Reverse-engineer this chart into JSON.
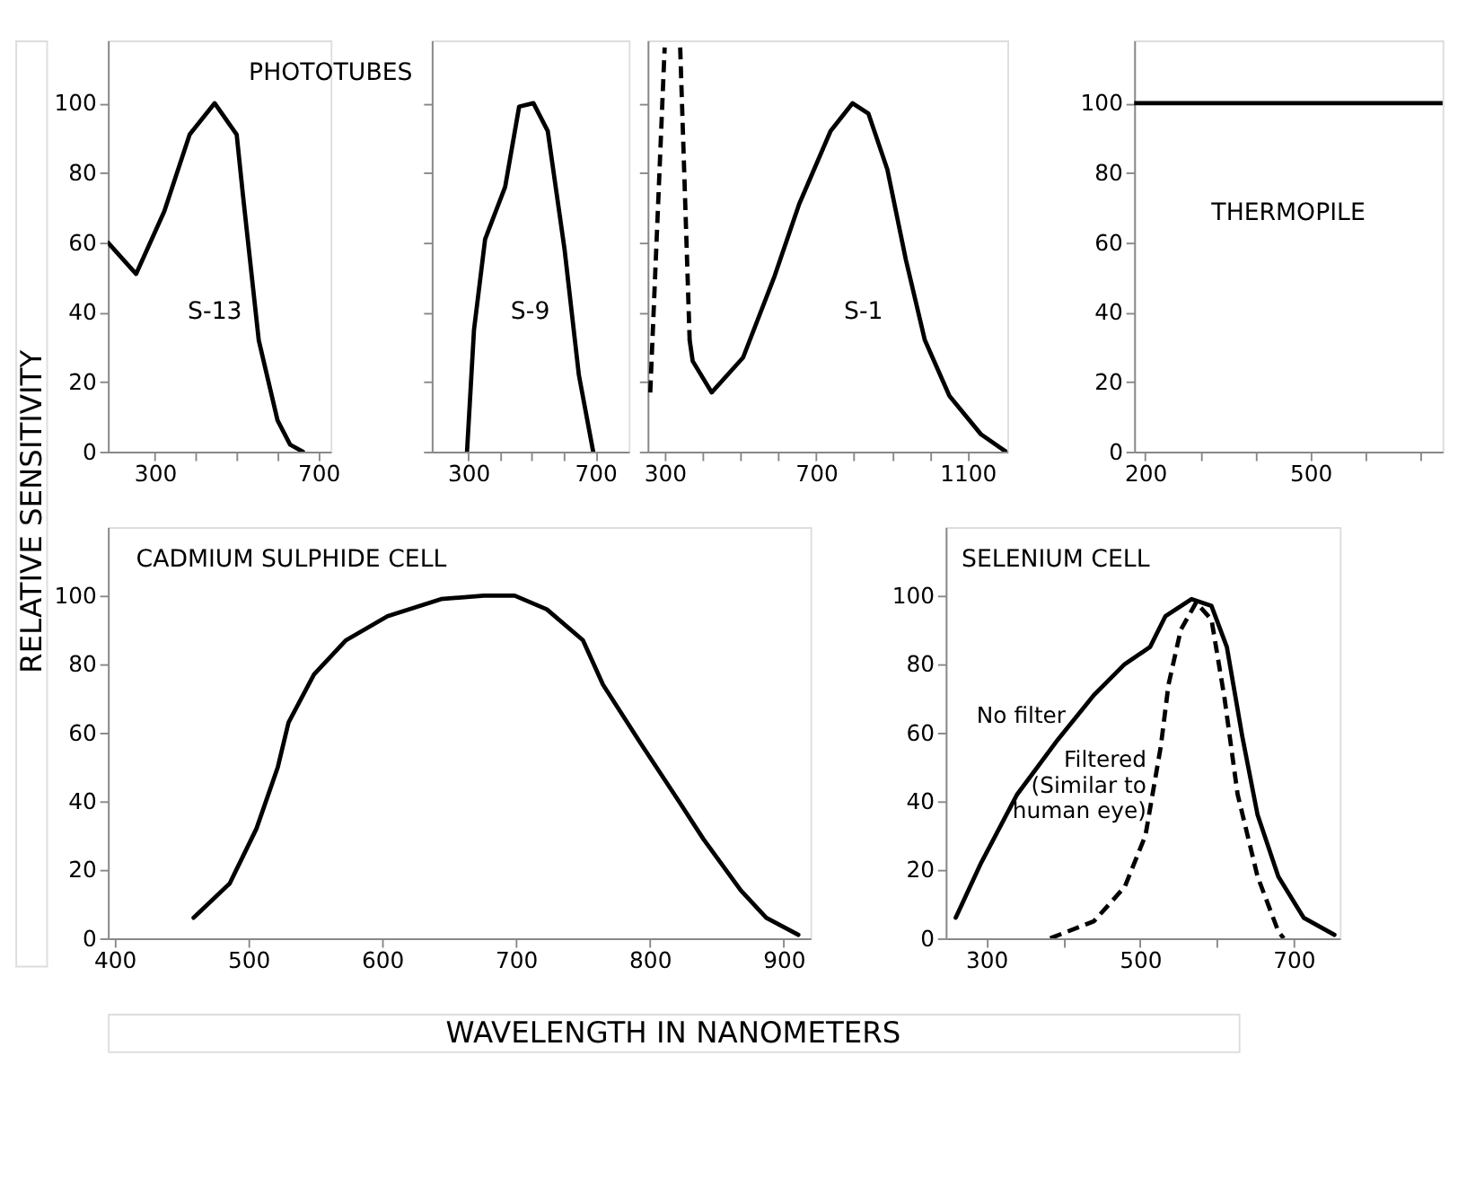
{
  "chart_data": [
    {
      "type": "line",
      "ylabel": "RELATIVE SENSITIVITY",
      "annotations": [
        "PHOTOTUBES",
        "S-13"
      ],
      "xlim": [
        185,
        730
      ],
      "xticks": [
        300,
        {
          "value": 400,
          "label": null
        },
        {
          "value": 500,
          "label": null
        },
        {
          "value": 600,
          "label": null
        },
        700
      ],
      "ylim": [
        0,
        118
      ],
      "yticks": [
        0,
        20,
        40,
        60,
        80,
        100
      ],
      "series": [
        {
          "color": "#000000",
          "line_style": "solid",
          "x": [
            185,
            254,
            323,
            385,
            446,
            500,
            515,
            554,
            600,
            631,
            662
          ],
          "values": [
            60,
            51,
            69,
            91,
            100,
            91,
            74,
            32,
            9,
            2,
            0
          ]
        }
      ]
    },
    {
      "type": "line",
      "tick_labels": "x",
      "annotations": [
        "S-9"
      ],
      "xlim": [
        185,
        805
      ],
      "xticks": [
        300,
        {
          "value": 400,
          "label": null
        },
        {
          "value": 500,
          "label": null
        },
        {
          "value": 600,
          "label": null
        },
        700
      ],
      "ylim": [
        0,
        118
      ],
      "yticks": [
        0,
        20,
        40,
        60,
        80,
        100
      ],
      "series": [
        {
          "color": "#000000",
          "line_style": "solid",
          "x": [
            296,
            318,
            353,
            416,
            460,
            505,
            550,
            603,
            648,
            693
          ],
          "values": [
            0,
            35,
            61,
            76,
            99,
            100,
            92,
            58,
            22,
            0
          ]
        }
      ]
    },
    {
      "type": "line",
      "tick_labels": "x",
      "annotations": [
        "S-1"
      ],
      "xlim": [
        255,
        1205
      ],
      "xticks": [
        300,
        {
          "value": 400,
          "label": null
        },
        {
          "value": 500,
          "label": null
        },
        {
          "value": 600,
          "label": null
        },
        700,
        {
          "value": 800,
          "label": null
        },
        {
          "value": 900,
          "label": null
        },
        {
          "value": 1000,
          "label": null
        },
        1100
      ],
      "ylim": [
        0,
        118
      ],
      "yticks": [
        0,
        20,
        40,
        60,
        80,
        100
      ],
      "series": [
        {
          "color": "#000000",
          "line_style": "dashed",
          "x": [
            262,
            300,
            320,
            341,
            366
          ],
          "values": [
            17,
            116,
            null,
            116,
            32
          ]
        },
        {
          "color": "#000000",
          "line_style": "solid",
          "x": [
            366,
            374,
            424,
            507,
            589,
            655,
            738,
            796,
            838,
            888,
            937,
            987,
            1052,
            1135,
            1201
          ],
          "values": [
            32,
            26,
            17,
            27,
            50,
            71,
            92,
            100,
            97,
            81,
            55,
            32,
            16,
            5,
            0
          ]
        }
      ]
    },
    {
      "type": "line",
      "annotations": [
        "THERMOPILE"
      ],
      "xlim": [
        180,
        740
      ],
      "xticks": [
        200,
        {
          "value": 300,
          "label": null
        },
        {
          "value": 400,
          "label": null
        },
        500,
        {
          "value": 600,
          "label": null
        },
        {
          "value": 700,
          "label": null
        }
      ],
      "ylim": [
        0,
        118
      ],
      "yticks": [
        0,
        20,
        40,
        60,
        80,
        100
      ],
      "series": [
        {
          "color": "#000000",
          "line_style": "solid",
          "x": [
            180,
            740
          ],
          "values": [
            100,
            100
          ]
        }
      ]
    },
    {
      "type": "line",
      "xlabel": "WAVELENGTH IN NANOMETERS",
      "annotations": [
        "CADMIUM SULPHIDE CELL"
      ],
      "xlim": [
        395,
        920
      ],
      "xticks": [
        400,
        500,
        600,
        700,
        800,
        900
      ],
      "ylim": [
        0,
        120
      ],
      "yticks": [
        0,
        20,
        40,
        60,
        80,
        100
      ],
      "series": [
        {
          "color": "#000000",
          "line_style": "solid",
          "x": [
            459,
            486,
            506,
            522,
            530,
            549,
            573,
            604,
            644,
            676,
            699,
            723,
            750,
            765,
            793,
            820,
            840,
            868,
            887,
            911
          ],
          "values": [
            6,
            16,
            32,
            50,
            63,
            77,
            87,
            94,
            99,
            100,
            100,
            96,
            87,
            74,
            57,
            41,
            29,
            14,
            6,
            1
          ]
        }
      ]
    },
    {
      "type": "line",
      "annotations": [
        "SELENIUM CELL",
        {
          "text": "No filter",
          "x": 430,
          "y": 68
        },
        {
          "text": "Filtered (Similar to human eye)",
          "x": 535,
          "y": 55
        }
      ],
      "xlim": [
        247,
        760
      ],
      "xticks": [
        300,
        {
          "value": 400,
          "label": null
        },
        500,
        {
          "value": 600,
          "label": null
        },
        700
      ],
      "ylim": [
        0,
        120
      ],
      "yticks": [
        0,
        20,
        40,
        60,
        80,
        100
      ],
      "series": [
        {
          "color": "#000000",
          "line_style": "solid",
          "x": [
            260,
            293,
            340,
            393,
            440,
            480,
            513,
            533,
            567,
            593,
            613,
            633,
            653,
            680,
            713,
            753
          ],
          "values": [
            6,
            22,
            42,
            58,
            71,
            80,
            85,
            94,
            99,
            97,
            85,
            59,
            36,
            18,
            6,
            1
          ]
        },
        {
          "color": "#000000",
          "line_style": "dashed",
          "x": [
            383,
            440,
            480,
            507,
            527,
            537,
            553,
            573,
            593,
            610,
            627,
            653,
            680,
            687
          ],
          "values": [
            0,
            5,
            15,
            30,
            56,
            74,
            90,
            98,
            93,
            70,
            42,
            18,
            2,
            0
          ]
        }
      ]
    }
  ]
}
